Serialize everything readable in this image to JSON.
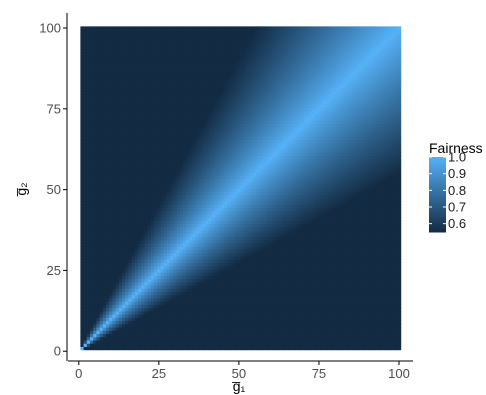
{
  "chart_data": {
    "type": "heatmap",
    "xlabel": "g̅₁",
    "ylabel": "g̅₂",
    "x_ticks": [
      0,
      25,
      50,
      75,
      100
    ],
    "y_ticks": [
      0,
      25,
      50,
      75,
      100
    ],
    "xlim": [
      1,
      100
    ],
    "ylim": [
      1,
      100
    ],
    "value_function": "min(g1,g2)/max(g1,g2)",
    "legend": {
      "title": "Fairness",
      "breaks": [
        1.0,
        0.9,
        0.8,
        0.7,
        0.6
      ],
      "break_labels": [
        "1.0",
        "0.9",
        "0.8",
        "0.7",
        "0.6"
      ],
      "range": [
        0.55,
        1.0
      ],
      "position": "right"
    },
    "grid": false,
    "colors": {
      "low": "#132B43",
      "high": "#56B1F7"
    }
  }
}
